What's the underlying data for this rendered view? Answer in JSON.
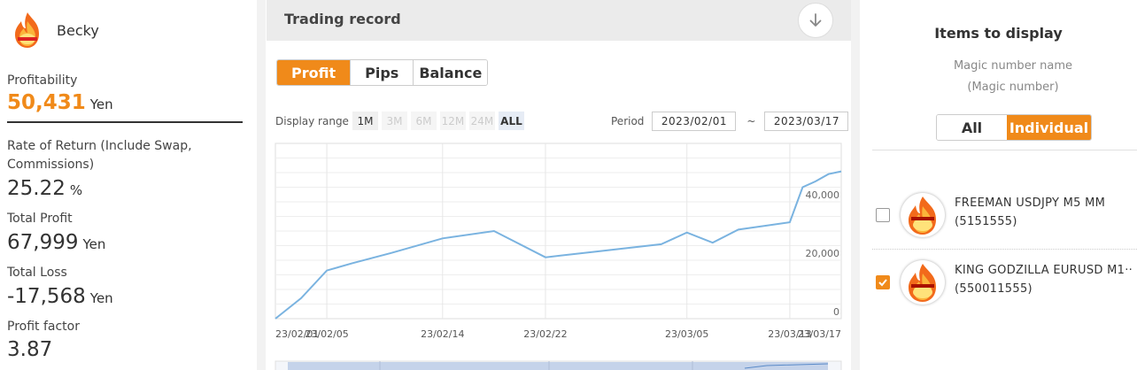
{
  "user": {
    "name": "Becky"
  },
  "stats": {
    "profitability_label": "Profitability",
    "profitability_value": "50,431",
    "profitability_unit": "Yen",
    "ror_label": "Rate of Return (Include Swap, Commissions)",
    "ror_value": "25.22",
    "ror_unit": "%",
    "total_profit_label": "Total Profit",
    "total_profit_value": "67,999",
    "total_profit_unit": "Yen",
    "total_loss_label": "Total Loss",
    "total_loss_value": "-17,568",
    "total_loss_unit": "Yen",
    "profit_factor_label": "Profit factor",
    "profit_factor_value": "3.87"
  },
  "center": {
    "title": "Trading record",
    "tabs": [
      "Profit",
      "Pips",
      "Balance"
    ],
    "active_tab": "Profit",
    "range_label": "Display range",
    "range_buttons": [
      "1M",
      "3M",
      "6M",
      "12M",
      "24M",
      "ALL"
    ],
    "period_label": "Period",
    "period_from": "2023/02/01",
    "period_sep": "~",
    "period_to": "2023/03/17"
  },
  "chart_data": {
    "type": "line",
    "x_ticks": [
      "23/02/01",
      "23/02/05",
      "23/02/14",
      "23/02/22",
      "23/03/05",
      "23/03/13",
      "23/03/17"
    ],
    "y_ticks": [
      "0",
      "20,000",
      "40,000"
    ],
    "ylim": [
      0,
      60000
    ],
    "grid": true,
    "series": [
      {
        "x": [
          "2023-02-01",
          "2023-02-03",
          "2023-02-05",
          "2023-02-07",
          "2023-02-10",
          "2023-02-14",
          "2023-02-18",
          "2023-02-22",
          "2023-02-26",
          "2023-03-03",
          "2023-03-05",
          "2023-03-07",
          "2023-03-09",
          "2023-03-13",
          "2023-03-14",
          "2023-03-15",
          "2023-03-16",
          "2023-03-17"
        ],
        "values": [
          0,
          7000,
          16500,
          19000,
          22500,
          27500,
          30000,
          21000,
          23000,
          25500,
          29500,
          26000,
          30500,
          33000,
          45000,
          47000,
          49500,
          50431
        ],
        "color": "#7ab3e0"
      }
    ]
  },
  "right": {
    "title": "Items to display",
    "magic_label_1": "Magic number name",
    "magic_label_2": "(Magic number)",
    "toggle": [
      "All",
      "Individual"
    ],
    "active_toggle": "Individual",
    "items": [
      {
        "name": "FREEMAN USDJPY M5 MM",
        "magic": "(5151555)",
        "checked": false
      },
      {
        "name": "KING GODZILLA EURUSD M1··",
        "magic": "(550011555)",
        "checked": true
      }
    ]
  },
  "colors": {
    "accent": "#f08a1a",
    "line": "#7ab3e0"
  }
}
